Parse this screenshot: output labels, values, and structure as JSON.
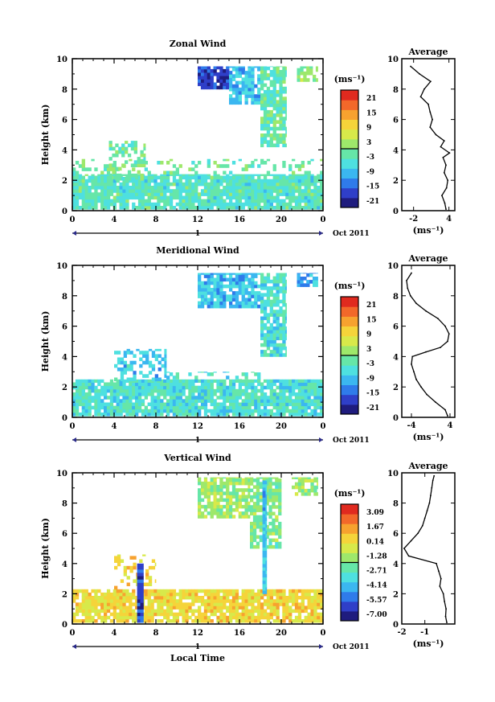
{
  "chart_data": [
    {
      "type": "heatmap",
      "title": "Zonal Wind",
      "xlabel": "",
      "ylabel": "Height (km)",
      "xlim": [
        0,
        24
      ],
      "ylim": [
        0,
        10
      ],
      "x_ticks": [
        "0",
        "4",
        "8",
        "12",
        "16",
        "20",
        "0"
      ],
      "y_ticks": [
        "0",
        "2",
        "4",
        "6",
        "8",
        "10"
      ],
      "date_axis": {
        "day_label": "1",
        "month_label": "Oct 2011"
      },
      "colorbar": {
        "unit": "(ms⁻¹)",
        "ticks": [
          "21",
          "15",
          "9",
          "3",
          "-3",
          "-9",
          "-15",
          "-21"
        ],
        "range": [
          -24,
          24
        ]
      },
      "patches": [
        {
          "x": [
            0,
            24
          ],
          "y": [
            0.1,
            2.4
          ],
          "value": -4,
          "coverage": 0.9
        },
        {
          "x": [
            0,
            24
          ],
          "y": [
            2.4,
            3.4
          ],
          "value": -1,
          "coverage": 0.25
        },
        {
          "x": [
            3.5,
            7.0
          ],
          "y": [
            2.0,
            4.6
          ],
          "value": -1,
          "coverage": 0.5
        },
        {
          "x": [
            12,
            15
          ],
          "y": [
            8.0,
            9.5
          ],
          "value": -18,
          "coverage": 0.85
        },
        {
          "x": [
            15,
            18
          ],
          "y": [
            7.0,
            9.5
          ],
          "value": -9,
          "coverage": 0.8
        },
        {
          "x": [
            18,
            20.5
          ],
          "y": [
            4.2,
            9.5
          ],
          "value": -3,
          "coverage": 0.75
        },
        {
          "x": [
            21.5,
            23.5
          ],
          "y": [
            8.5,
            9.5
          ],
          "value": 0,
          "coverage": 0.7
        }
      ],
      "average": {
        "title": "Average",
        "xlabel": "(ms⁻¹)",
        "x_ticks": [
          "-2",
          "4"
        ],
        "xlim": [
          -4,
          5
        ],
        "profile": [
          {
            "y": 0.1,
            "x": 3.5
          },
          {
            "y": 0.5,
            "x": 3.3
          },
          {
            "y": 1.0,
            "x": 2.8
          },
          {
            "y": 1.5,
            "x": 3.6
          },
          {
            "y": 2.0,
            "x": 3.8
          },
          {
            "y": 2.5,
            "x": 3.2
          },
          {
            "y": 3.0,
            "x": 3.5
          },
          {
            "y": 3.5,
            "x": 3.0
          },
          {
            "y": 3.8,
            "x": 4.1
          },
          {
            "y": 4.2,
            "x": 2.6
          },
          {
            "y": 4.6,
            "x": 3.2
          },
          {
            "y": 5.0,
            "x": 1.8
          },
          {
            "y": 5.5,
            "x": 0.8
          },
          {
            "y": 6.0,
            "x": 1.2
          },
          {
            "y": 6.5,
            "x": 0.8
          },
          {
            "y": 7.0,
            "x": 0.5
          },
          {
            "y": 7.5,
            "x": -0.8
          },
          {
            "y": 8.0,
            "x": -0.2
          },
          {
            "y": 8.5,
            "x": 0.9
          },
          {
            "y": 9.0,
            "x": -1.0
          },
          {
            "y": 9.5,
            "x": -2.5
          }
        ]
      }
    },
    {
      "type": "heatmap",
      "title": "Meridional Wind",
      "xlabel": "",
      "ylabel": "Height (km)",
      "xlim": [
        0,
        24
      ],
      "ylim": [
        0,
        10
      ],
      "x_ticks": [
        "0",
        "4",
        "8",
        "12",
        "16",
        "20",
        "0"
      ],
      "y_ticks": [
        "0",
        "2",
        "4",
        "6",
        "8",
        "10"
      ],
      "date_axis": {
        "day_label": "1",
        "month_label": "Oct 2011"
      },
      "colorbar": {
        "unit": "(ms⁻¹)",
        "ticks": [
          "21",
          "15",
          "9",
          "3",
          "-3",
          "-9",
          "-15",
          "-21"
        ],
        "range": [
          -24,
          24
        ]
      },
      "patches": [
        {
          "x": [
            0,
            24
          ],
          "y": [
            0.1,
            2.5
          ],
          "value": -5,
          "coverage": 0.9
        },
        {
          "x": [
            4,
            9
          ],
          "y": [
            2.4,
            4.5
          ],
          "value": -8,
          "coverage": 0.45
        },
        {
          "x": [
            9,
            18
          ],
          "y": [
            2.3,
            3.0
          ],
          "value": -5,
          "coverage": 0.3
        },
        {
          "x": [
            12,
            18
          ],
          "y": [
            7.2,
            9.5
          ],
          "value": -9,
          "coverage": 0.8
        },
        {
          "x": [
            18,
            20.5
          ],
          "y": [
            4.0,
            9.5
          ],
          "value": -5,
          "coverage": 0.75
        },
        {
          "x": [
            21.5,
            23.5
          ],
          "y": [
            8.6,
            9.5
          ],
          "value": -10,
          "coverage": 0.7
        }
      ],
      "average": {
        "title": "Average",
        "xlabel": "(ms⁻¹)",
        "x_ticks": [
          "-4",
          "4"
        ],
        "xlim": [
          -6,
          5
        ],
        "profile": [
          {
            "y": 0.1,
            "x": 3.5
          },
          {
            "y": 0.5,
            "x": 3.0
          },
          {
            "y": 1.0,
            "x": 1.0
          },
          {
            "y": 1.5,
            "x": -0.8
          },
          {
            "y": 2.0,
            "x": -2.0
          },
          {
            "y": 2.5,
            "x": -3.0
          },
          {
            "y": 3.0,
            "x": -3.5
          },
          {
            "y": 3.5,
            "x": -4.0
          },
          {
            "y": 4.0,
            "x": -3.8
          },
          {
            "y": 4.3,
            "x": -1.0
          },
          {
            "y": 4.6,
            "x": 2.0
          },
          {
            "y": 5.0,
            "x": 3.5
          },
          {
            "y": 5.5,
            "x": 3.8
          },
          {
            "y": 6.0,
            "x": 3.0
          },
          {
            "y": 6.5,
            "x": 1.5
          },
          {
            "y": 7.0,
            "x": -1.0
          },
          {
            "y": 7.5,
            "x": -3.0
          },
          {
            "y": 8.0,
            "x": -4.2
          },
          {
            "y": 8.5,
            "x": -4.8
          },
          {
            "y": 9.0,
            "x": -5.0
          },
          {
            "y": 9.5,
            "x": -4.0
          }
        ]
      }
    },
    {
      "type": "heatmap",
      "title": "Vertical Wind",
      "xlabel": "Local Time",
      "ylabel": "Height (km)",
      "xlim": [
        0,
        24
      ],
      "ylim": [
        0,
        10
      ],
      "x_ticks": [
        "0",
        "4",
        "8",
        "12",
        "16",
        "20",
        "0"
      ],
      "y_ticks": [
        "0",
        "2",
        "4",
        "6",
        "8",
        "10"
      ],
      "date_axis": {
        "day_label": "1",
        "month_label": "Oct 2011"
      },
      "colorbar": {
        "unit": "(ms⁻¹)",
        "ticks": [
          "3.09",
          "1.67",
          "0.14",
          "-1.28",
          "-2.71",
          "-4.14",
          "-5.57",
          "-7.00"
        ],
        "range": [
          -8.5,
          4.5
        ]
      },
      "patches": [
        {
          "x": [
            0,
            24
          ],
          "y": [
            0.1,
            2.3
          ],
          "value": 0.4,
          "coverage": 0.85
        },
        {
          "x": [
            4,
            8
          ],
          "y": [
            2.3,
            4.6
          ],
          "value": 0.5,
          "coverage": 0.3
        },
        {
          "x": [
            6.2,
            6.8
          ],
          "y": [
            0.1,
            4.0
          ],
          "value": -6.5,
          "coverage": 1.0
        },
        {
          "x": [
            12,
            17
          ],
          "y": [
            7.0,
            9.7
          ],
          "value": -1.4,
          "coverage": 0.8
        },
        {
          "x": [
            17,
            20
          ],
          "y": [
            5.0,
            9.7
          ],
          "value": -2.0,
          "coverage": 0.8
        },
        {
          "x": [
            18.2,
            18.6
          ],
          "y": [
            2.0,
            9.5
          ],
          "value": -4.3,
          "coverage": 1.0
        },
        {
          "x": [
            21,
            23.5
          ],
          "y": [
            8.5,
            9.7
          ],
          "value": -1.5,
          "coverage": 0.7
        }
      ],
      "average": {
        "title": "Average",
        "xlabel": "(ms⁻¹)",
        "x_ticks": [
          "-2",
          "-1"
        ],
        "xlim": [
          -2,
          0.3
        ],
        "profile": [
          {
            "y": 0.1,
            "x": -0.05
          },
          {
            "y": 0.5,
            "x": -0.1
          },
          {
            "y": 1.0,
            "x": -0.08
          },
          {
            "y": 1.5,
            "x": -0.15
          },
          {
            "y": 2.0,
            "x": -0.2
          },
          {
            "y": 2.5,
            "x": -0.35
          },
          {
            "y": 3.0,
            "x": -0.3
          },
          {
            "y": 3.5,
            "x": -0.4
          },
          {
            "y": 4.0,
            "x": -0.5
          },
          {
            "y": 4.5,
            "x": -1.7
          },
          {
            "y": 5.0,
            "x": -1.9
          },
          {
            "y": 5.5,
            "x": -1.6
          },
          {
            "y": 6.0,
            "x": -1.3
          },
          {
            "y": 6.5,
            "x": -1.1
          },
          {
            "y": 7.0,
            "x": -1.0
          },
          {
            "y": 7.5,
            "x": -0.9
          },
          {
            "y": 8.0,
            "x": -0.8
          },
          {
            "y": 8.5,
            "x": -0.75
          },
          {
            "y": 9.0,
            "x": -0.7
          },
          {
            "y": 9.5,
            "x": -0.65
          },
          {
            "y": 9.8,
            "x": -0.6
          }
        ]
      }
    }
  ],
  "colors": {
    "palette": [
      "#1f1c7e",
      "#2f3fc8",
      "#2f7bea",
      "#3bb7f0",
      "#4ee0e0",
      "#66e6a8",
      "#9ee86b",
      "#d8e94a",
      "#f5d43a",
      "#f7a22f",
      "#f2682a",
      "#e02a1f"
    ]
  }
}
